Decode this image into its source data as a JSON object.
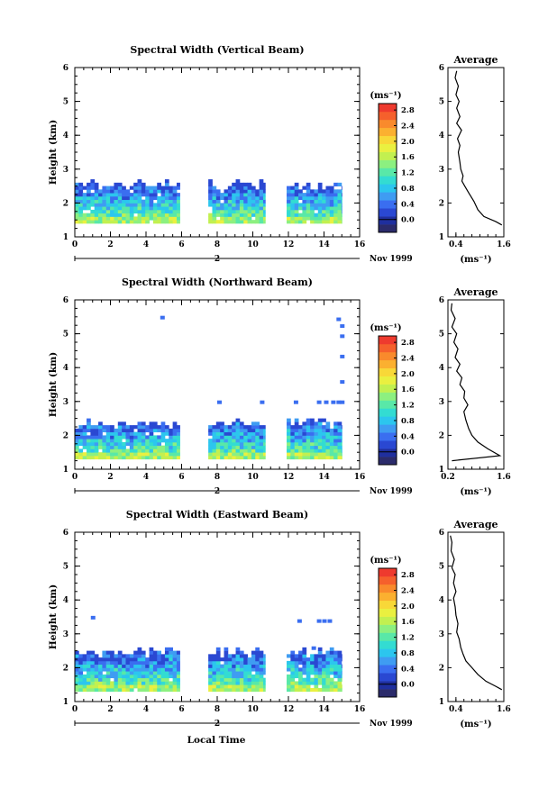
{
  "figure": {
    "date_label": "Nov 1999",
    "xlabel": "Local Time",
    "day_marker": "2"
  },
  "colorbar": {
    "unit": "(ms⁻¹)",
    "ticks": [
      "0.0",
      "0.4",
      "0.8",
      "1.2",
      "1.6",
      "2.0",
      "2.4",
      "2.8"
    ],
    "colors": [
      "#2b2b6b",
      "#1f2f9e",
      "#2a48d2",
      "#3a6ef0",
      "#3f9cf2",
      "#2cc6ee",
      "#33dcd2",
      "#59e8a8",
      "#8cf080",
      "#c2f050",
      "#eaf040",
      "#f8d838",
      "#fbb030",
      "#f98a2c",
      "#f5602c",
      "#ee3a2e"
    ]
  },
  "chart_data": [
    {
      "type": "heatmap",
      "title": "Spectral Width (Vertical Beam)",
      "ylabel": "Height (km)",
      "xlim": [
        0,
        16
      ],
      "ylim": [
        1,
        6
      ],
      "xticks": [
        0,
        2,
        4,
        6,
        8,
        10,
        12,
        14,
        16
      ],
      "yticks": [
        1,
        2,
        3,
        4,
        5,
        6
      ],
      "segments": [
        [
          0,
          5.9
        ],
        [
          7.5,
          10.7
        ],
        [
          11.9,
          15
        ]
      ],
      "base_height": 1.4,
      "top_height": 2.5,
      "sparse_points": [],
      "profile": {
        "title": "Average",
        "xlabel": "(ms⁻¹)",
        "xlim": [
          0.2,
          1.6
        ],
        "xticks": [
          "0.4",
          "1.6"
        ],
        "xtick_values": [
          0.4,
          1.6
        ],
        "yticks": [
          1,
          2,
          3,
          4,
          5,
          6
        ],
        "points": [
          [
            1.55,
            1.35
          ],
          [
            1.4,
            1.45
          ],
          [
            1.1,
            1.6
          ],
          [
            0.95,
            1.8
          ],
          [
            0.85,
            2.05
          ],
          [
            0.72,
            2.3
          ],
          [
            0.62,
            2.5
          ],
          [
            0.55,
            2.65
          ],
          [
            0.58,
            2.8
          ],
          [
            0.52,
            3.0
          ],
          [
            0.5,
            3.2
          ],
          [
            0.46,
            3.5
          ],
          [
            0.5,
            3.7
          ],
          [
            0.44,
            3.9
          ],
          [
            0.54,
            4.15
          ],
          [
            0.42,
            4.35
          ],
          [
            0.5,
            4.55
          ],
          [
            0.42,
            4.8
          ],
          [
            0.48,
            5.0
          ],
          [
            0.4,
            5.2
          ],
          [
            0.46,
            5.45
          ],
          [
            0.38,
            5.7
          ],
          [
            0.42,
            5.9
          ]
        ]
      }
    },
    {
      "type": "heatmap",
      "title": "Spectral Width (Northward Beam)",
      "ylabel": "Height (km)",
      "xlim": [
        0,
        16
      ],
      "ylim": [
        1,
        6
      ],
      "xticks": [
        0,
        2,
        4,
        6,
        8,
        10,
        12,
        14,
        16
      ],
      "yticks": [
        1,
        2,
        3,
        4,
        5,
        6
      ],
      "segments": [
        [
          0,
          5.9
        ],
        [
          7.5,
          10.7
        ],
        [
          11.9,
          15
        ]
      ],
      "base_height": 1.3,
      "top_height": 2.3,
      "sparse_points": [
        [
          4.8,
          5.45
        ],
        [
          8,
          2.95
        ],
        [
          10.4,
          2.95
        ],
        [
          12.3,
          2.95
        ],
        [
          13.6,
          2.95
        ],
        [
          14.0,
          2.95
        ],
        [
          14.4,
          2.95
        ],
        [
          14.7,
          2.95
        ],
        [
          14.9,
          2.95
        ],
        [
          14.9,
          3.55
        ],
        [
          14.9,
          4.3
        ],
        [
          14.9,
          4.9
        ],
        [
          14.9,
          5.2
        ],
        [
          14.7,
          5.4
        ]
      ],
      "profile": {
        "title": "Average",
        "xlabel": "(ms⁻¹)",
        "xlim": [
          0.2,
          1.6
        ],
        "xticks": [
          "0.2",
          "1.6"
        ],
        "xtick_values": [
          0.2,
          1.6
        ],
        "yticks": [
          1,
          2,
          3,
          4,
          5,
          6
        ],
        "points": [
          [
            0.3,
            1.25
          ],
          [
            1.5,
            1.4
          ],
          [
            1.2,
            1.6
          ],
          [
            0.95,
            1.8
          ],
          [
            0.8,
            2.0
          ],
          [
            0.72,
            2.2
          ],
          [
            0.65,
            2.45
          ],
          [
            0.6,
            2.7
          ],
          [
            0.7,
            2.9
          ],
          [
            0.6,
            3.1
          ],
          [
            0.62,
            3.3
          ],
          [
            0.5,
            3.5
          ],
          [
            0.55,
            3.7
          ],
          [
            0.42,
            3.9
          ],
          [
            0.5,
            4.1
          ],
          [
            0.38,
            4.3
          ],
          [
            0.45,
            4.55
          ],
          [
            0.35,
            4.75
          ],
          [
            0.42,
            5.0
          ],
          [
            0.3,
            5.2
          ],
          [
            0.38,
            5.45
          ],
          [
            0.28,
            5.7
          ],
          [
            0.3,
            5.9
          ]
        ]
      }
    },
    {
      "type": "heatmap",
      "title": "Spectral Width (Eastward Beam)",
      "ylabel": "Height (km)",
      "xlim": [
        0,
        16
      ],
      "ylim": [
        1,
        6
      ],
      "xticks": [
        0,
        2,
        4,
        6,
        8,
        10,
        12,
        14,
        16
      ],
      "yticks": [
        1,
        2,
        3,
        4,
        5,
        6
      ],
      "segments": [
        [
          0,
          5.9
        ],
        [
          7.5,
          10.7
        ],
        [
          11.9,
          15
        ]
      ],
      "base_height": 1.3,
      "top_height": 2.4,
      "sparse_points": [
        [
          0.9,
          3.45
        ],
        [
          12.5,
          3.35
        ],
        [
          13.6,
          3.35
        ],
        [
          13.9,
          3.35
        ],
        [
          14.2,
          3.35
        ],
        [
          13.3,
          2.55
        ]
      ],
      "profile": {
        "title": "Average",
        "xlabel": "(ms⁻¹)",
        "xlim": [
          0.2,
          1.6
        ],
        "xticks": [
          "0.4",
          "1.6"
        ],
        "xtick_values": [
          0.4,
          1.6
        ],
        "yticks": [
          1,
          2,
          3,
          4,
          5,
          6
        ],
        "points": [
          [
            1.55,
            1.35
          ],
          [
            1.4,
            1.45
          ],
          [
            1.15,
            1.6
          ],
          [
            0.95,
            1.8
          ],
          [
            0.8,
            2.0
          ],
          [
            0.65,
            2.2
          ],
          [
            0.58,
            2.4
          ],
          [
            0.52,
            2.6
          ],
          [
            0.48,
            2.85
          ],
          [
            0.42,
            3.05
          ],
          [
            0.45,
            3.3
          ],
          [
            0.4,
            3.55
          ],
          [
            0.38,
            3.8
          ],
          [
            0.34,
            4.05
          ],
          [
            0.4,
            4.25
          ],
          [
            0.34,
            4.5
          ],
          [
            0.38,
            4.75
          ],
          [
            0.3,
            4.95
          ],
          [
            0.36,
            5.2
          ],
          [
            0.28,
            5.45
          ],
          [
            0.3,
            5.7
          ],
          [
            0.26,
            5.9
          ]
        ]
      }
    }
  ]
}
